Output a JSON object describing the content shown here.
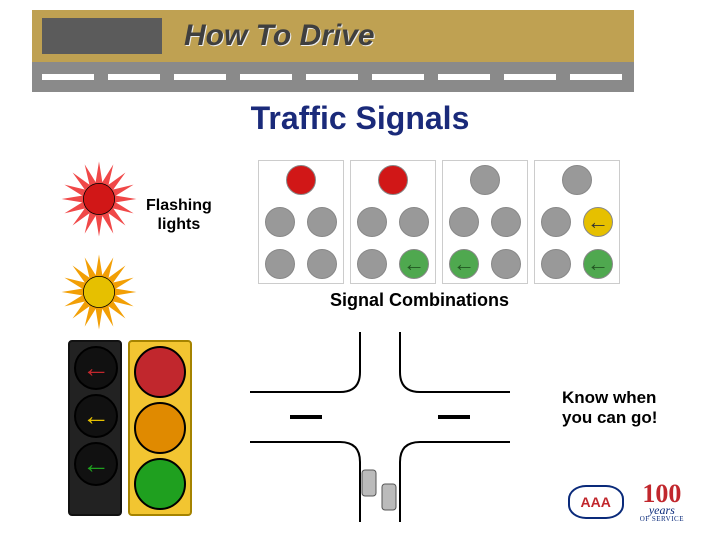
{
  "banner_title": "How To Drive",
  "page_title": "Traffic Signals",
  "flashing": {
    "label_line1": "Flashing",
    "label_line2": "lights",
    "lights": [
      {
        "color": "#d11717",
        "rays": "#f04848"
      },
      {
        "color": "#e6c000",
        "rays": "#f29f05"
      }
    ]
  },
  "signal_combinations": {
    "label": "Signal Combinations",
    "off_color": "#999999",
    "columns": [
      {
        "top": [
          "#d11717"
        ],
        "mid": [
          "#999999",
          "#999999"
        ],
        "bot": [
          "#999999",
          "#999999"
        ]
      },
      {
        "top": [
          "#d11717"
        ],
        "mid": [
          "#999999",
          "#999999"
        ],
        "bot": [
          "#999999",
          "#4fa84f"
        ],
        "bot_arrow": [
          false,
          true
        ]
      },
      {
        "top": [
          "#999999"
        ],
        "mid": [
          "#999999",
          "#999999"
        ],
        "bot": [
          "#4fa84f",
          "#999999"
        ],
        "bot_arrow": [
          true,
          false
        ]
      },
      {
        "top": [
          "#999999"
        ],
        "mid": [
          "#999999",
          "#e6c000"
        ],
        "mid_arrow": [
          false,
          true
        ],
        "bot": [
          "#999999",
          "#4fa84f"
        ],
        "bot_arrow": [
          false,
          true
        ]
      }
    ]
  },
  "traffic_lights": {
    "left_arrows": [
      "#c1272d",
      "#e6c000",
      "#1fa01f"
    ],
    "right_balls": [
      "#c1272d",
      "#e08a00",
      "#1fa01f"
    ]
  },
  "callout_line1": "Know when",
  "callout_line2": "you can go!",
  "logos": {
    "aaa": "AAA",
    "hundred": "100",
    "years": "years",
    "service": "OF SERVICE"
  },
  "colors": {
    "road": "#8a8a8a",
    "title": "#1a2a7a"
  }
}
